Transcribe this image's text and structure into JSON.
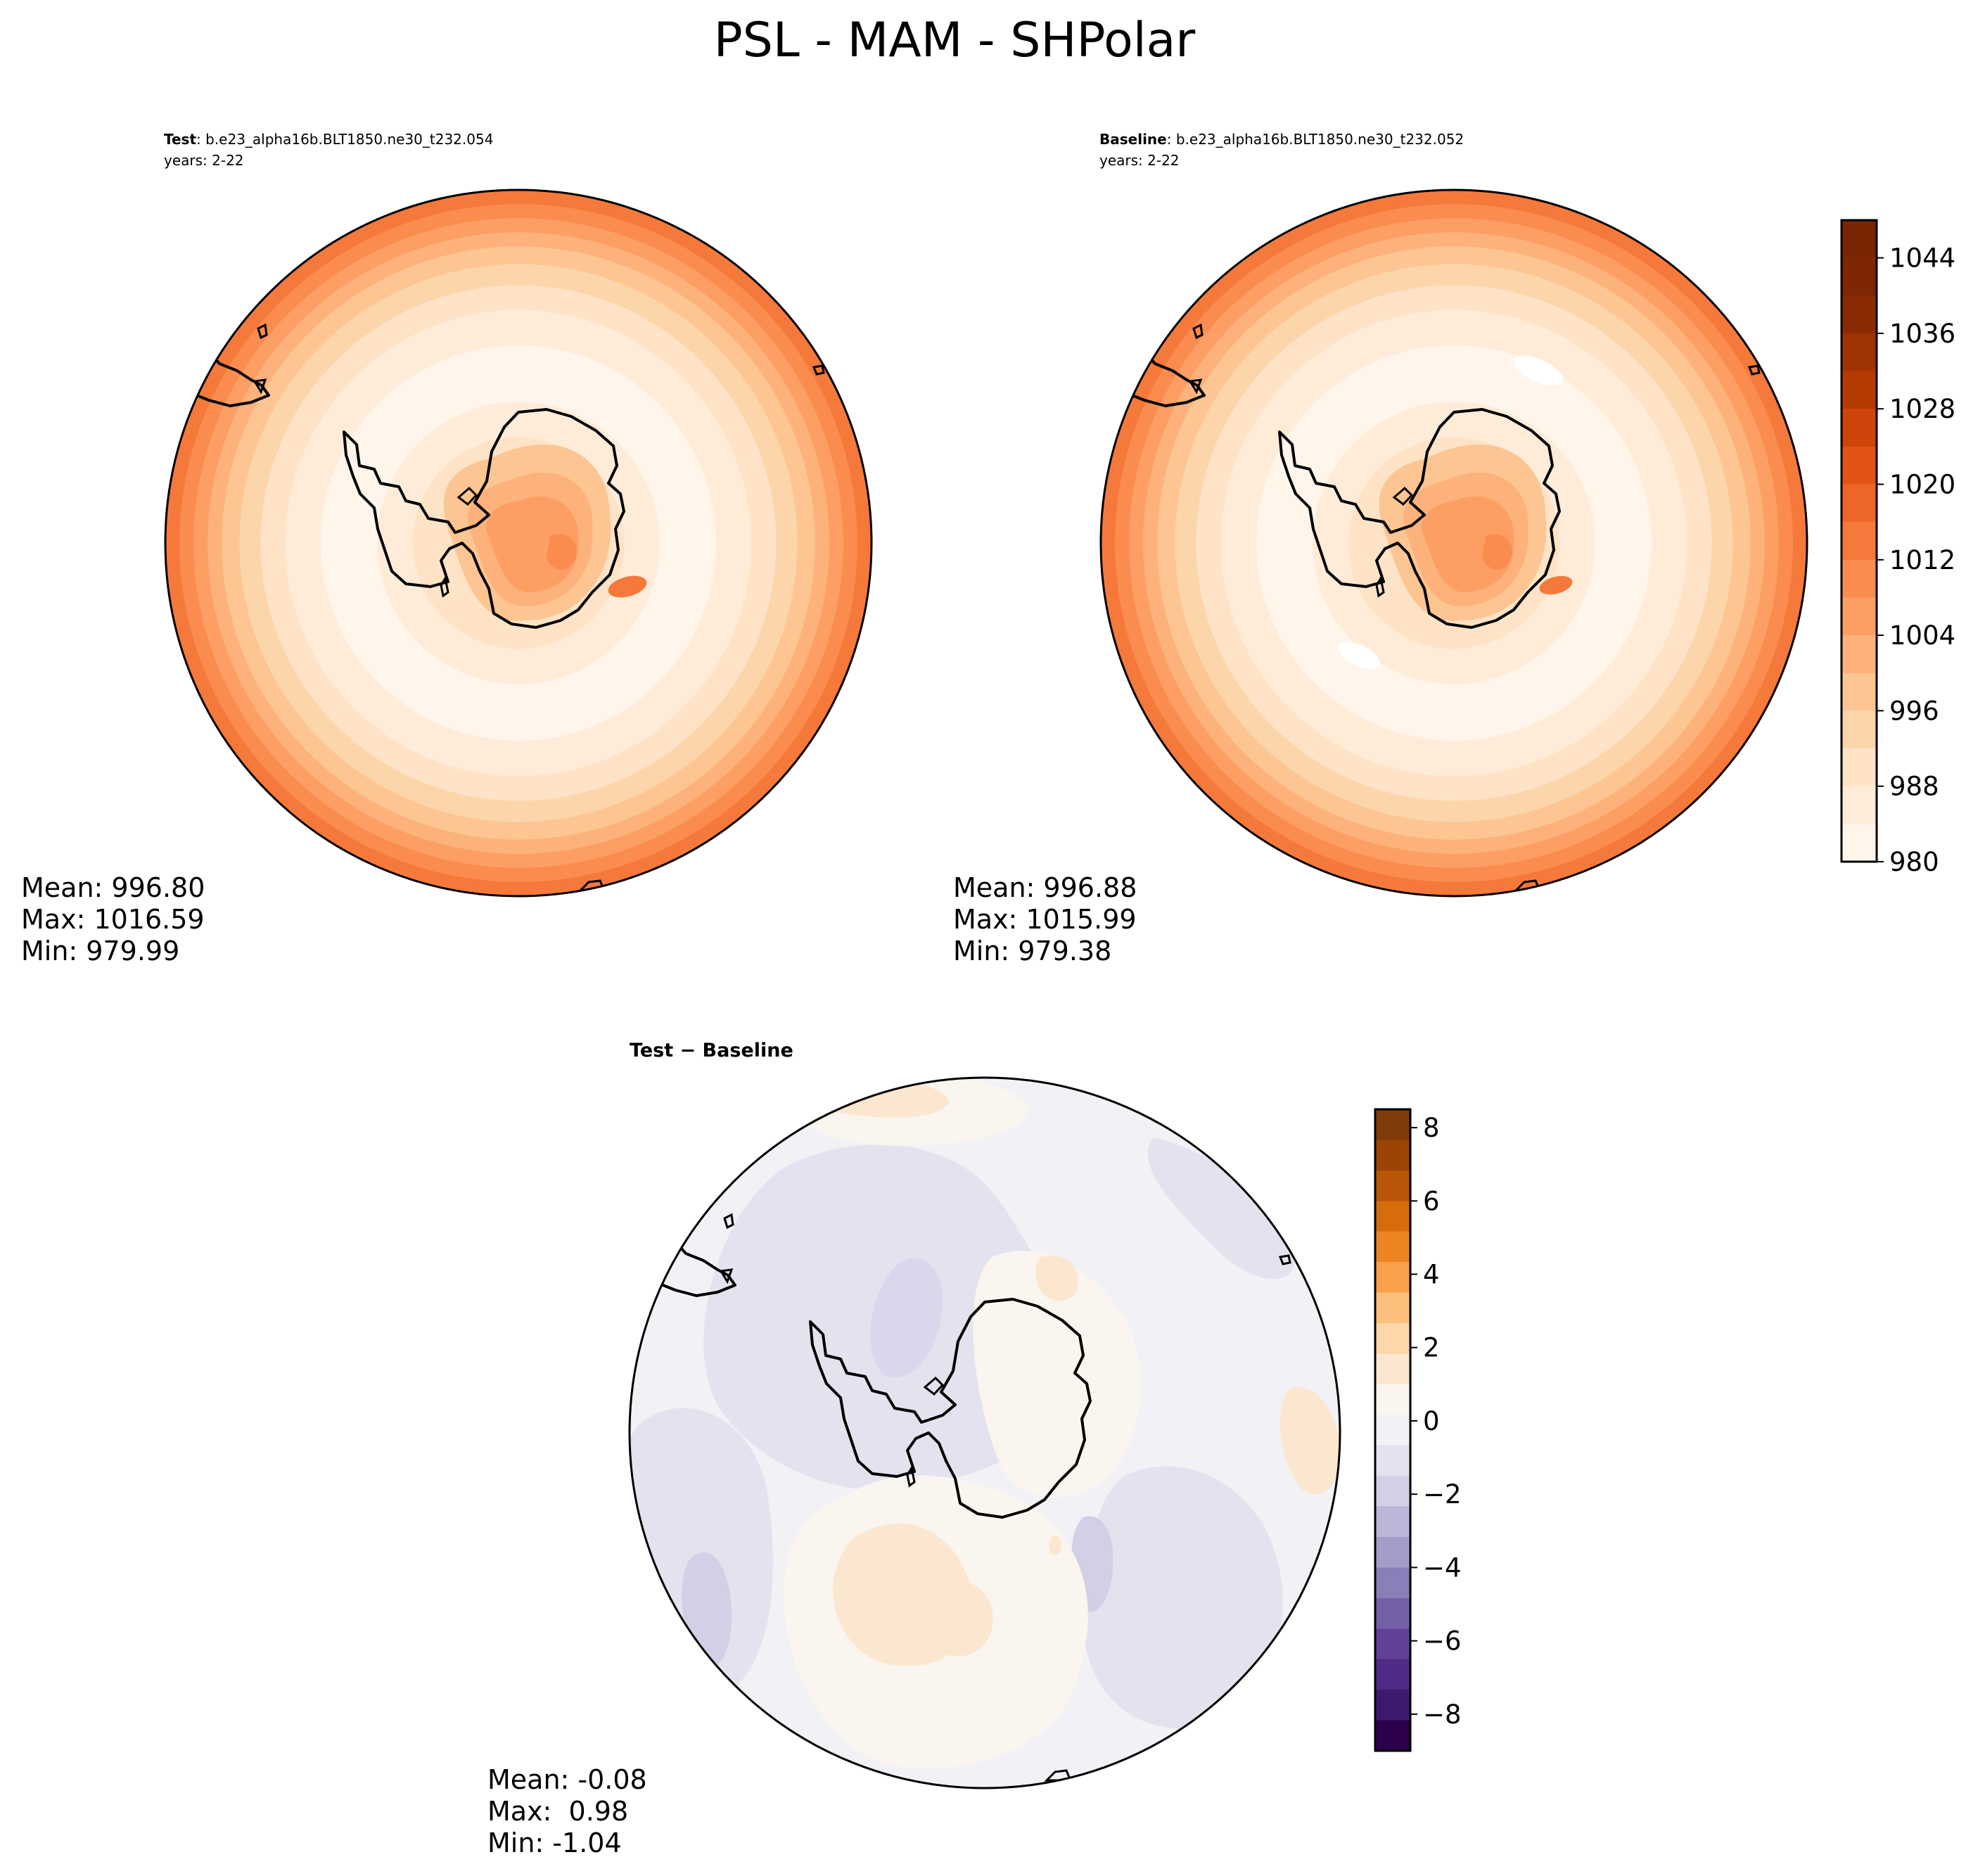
{
  "figure": {
    "title": "PSL - MAM - SHPolar"
  },
  "panels": {
    "test": {
      "label_bold": "Test",
      "label_rest": ": b.e23_alpha16b.BLT1850.ne30_t232.054",
      "years": "years: 2-22",
      "stats": {
        "mean": "Mean: 996.80",
        "max": "Max: 1016.59",
        "min": "Min: 979.99"
      }
    },
    "baseline": {
      "label_bold": "Baseline",
      "label_rest": ": b.e23_alpha16b.BLT1850.ne30_t232.052",
      "years": "years: 2-22",
      "stats": {
        "mean": "Mean: 996.88",
        "max": "Max: 1015.99",
        "min": "Min: 979.38"
      }
    },
    "diff": {
      "label_bold": "Test − Baseline",
      "stats": {
        "mean": "Mean: -0.08",
        "max": "Max:  0.98",
        "min": "Min: -1.04"
      }
    }
  },
  "chart_data": [
    {
      "type": "heatmap",
      "panel": "Test",
      "projection": "south polar stereographic",
      "colormap": "Oranges",
      "contour_levels": [
        980,
        984,
        988,
        992,
        996,
        1000,
        1004,
        1008,
        1012,
        1016,
        1020,
        1024,
        1028,
        1032,
        1036,
        1040,
        1044,
        1048
      ],
      "field_summary": {
        "mean": 996.8,
        "max": 1016.59,
        "min": 979.99
      }
    },
    {
      "type": "heatmap",
      "panel": "Baseline",
      "projection": "south polar stereographic",
      "colormap": "Oranges",
      "contour_levels": [
        980,
        984,
        988,
        992,
        996,
        1000,
        1004,
        1008,
        1012,
        1016,
        1020,
        1024,
        1028,
        1032,
        1036,
        1040,
        1044,
        1048
      ],
      "field_summary": {
        "mean": 996.88,
        "max": 1015.99,
        "min": 979.38
      },
      "colorbar": {
        "ticks": [
          "980",
          "988",
          "996",
          "1004",
          "1012",
          "1020",
          "1028",
          "1036",
          "1044"
        ],
        "range": [
          980,
          1048
        ]
      }
    },
    {
      "type": "heatmap",
      "panel": "Test − Baseline",
      "projection": "south polar stereographic",
      "colormap": "PuOr_r",
      "field_summary": {
        "mean": -0.08,
        "max": 0.98,
        "min": -1.04
      },
      "colorbar": {
        "ticks": [
          "−8",
          "−6",
          "−4",
          "−2",
          "0",
          "2",
          "4",
          "6",
          "8"
        ],
        "range": [
          -9,
          8.5
        ]
      }
    }
  ],
  "colors": {
    "oranges_ramp": [
      "#fff5eb",
      "#feecd9",
      "#fee3c7",
      "#fdd5ab",
      "#fdc591",
      "#fdb27b",
      "#fd9f64",
      "#fb8c4f",
      "#f5793a",
      "#ee6627",
      "#e15416",
      "#cf440b",
      "#b53a04",
      "#9f3303",
      "#8a2c03",
      "#7f2704",
      "#7a2504"
    ],
    "diverging_ramp": [
      "#2d004b",
      "#3e1a6e",
      "#4f2a86",
      "#604197",
      "#7460a7",
      "#8a7fb8",
      "#a39dc9",
      "#bcb6d9",
      "#d2cfe6",
      "#e4e2ef",
      "#f2f1f5",
      "#faf5ee",
      "#fbe7cf",
      "#fdd6a9",
      "#fdbf7c",
      "#f9a04b",
      "#ec8422",
      "#d66c0c",
      "#b95607",
      "#9c4406",
      "#7f3b08"
    ]
  }
}
